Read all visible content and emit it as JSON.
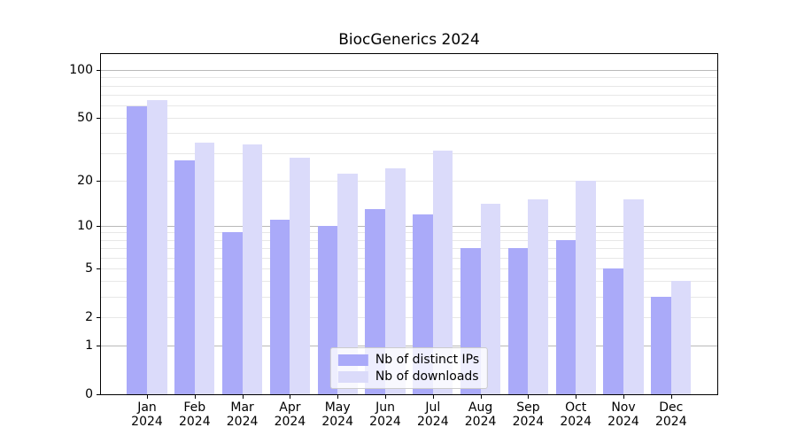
{
  "chart_data": {
    "type": "bar",
    "title": "BiocGenerics 2024",
    "categories": [
      "Jan 2024",
      "Feb 2024",
      "Mar 2024",
      "Apr 2024",
      "May 2024",
      "Jun 2024",
      "Jul 2024",
      "Aug 2024",
      "Sep 2024",
      "Oct 2024",
      "Nov 2024",
      "Dec 2024"
    ],
    "category_months": [
      "Jan",
      "Feb",
      "Mar",
      "Apr",
      "May",
      "Jun",
      "Jul",
      "Aug",
      "Sep",
      "Oct",
      "Nov",
      "Dec"
    ],
    "category_year": "2024",
    "series": [
      {
        "name": "Nb of distinct IPs",
        "color": "#aaaaf9",
        "values": [
          59,
          27,
          9,
          11,
          10,
          13,
          12,
          7,
          7,
          8,
          5,
          3
        ]
      },
      {
        "name": "Nb of downloads",
        "color": "#dbdbfa",
        "values": [
          65,
          35,
          34,
          28,
          22,
          24,
          31,
          14,
          15,
          20,
          15,
          4
        ]
      }
    ],
    "y_axis": {
      "scale": "log10(x+1)",
      "tick_labels": [
        "100",
        "50",
        "20",
        "10",
        "5",
        "2",
        "1",
        "0"
      ],
      "tick_values": [
        100,
        50,
        20,
        10,
        5,
        2,
        1,
        0
      ],
      "major_gridline_values": [
        1,
        10,
        100
      ],
      "minor_gridline_values": [
        2,
        3,
        4,
        5,
        6,
        7,
        8,
        9,
        20,
        30,
        40,
        50,
        60,
        70,
        80,
        90
      ],
      "ymax_visible": 126
    },
    "legend_position": "lower center",
    "grid": true,
    "colors": {
      "major_grid": "#b9b9b9",
      "minor_grid": "#e7e7e7",
      "axis": "#000000",
      "background": "#ffffff"
    }
  }
}
